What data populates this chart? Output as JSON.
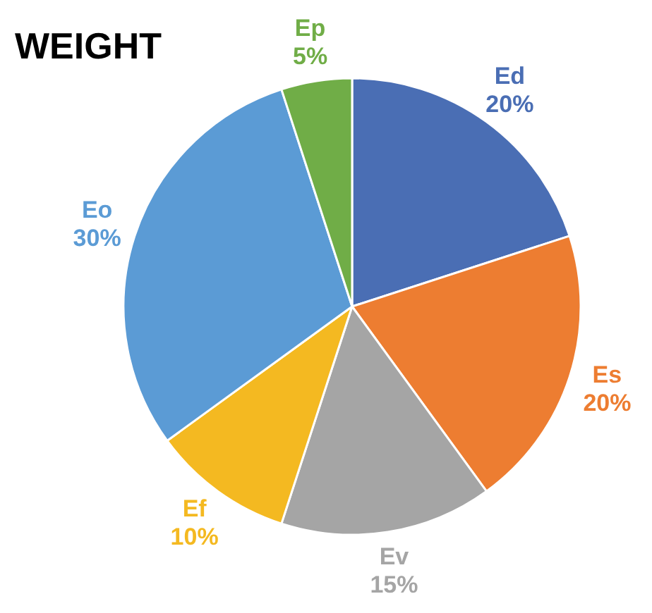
{
  "chart_data": {
    "type": "pie",
    "title": "WEIGHT",
    "categories": [
      "Ed",
      "Es",
      "Ev",
      "Ef",
      "Eo",
      "Ep"
    ],
    "values": [
      20,
      20,
      15,
      10,
      30,
      5
    ],
    "value_labels": [
      "20%",
      "20%",
      "15%",
      "10%",
      "30%",
      "5%"
    ],
    "colors": [
      "#4a6eb4",
      "#ed7d31",
      "#a5a5a5",
      "#f4b921",
      "#5b9bd5",
      "#70ad47"
    ]
  }
}
